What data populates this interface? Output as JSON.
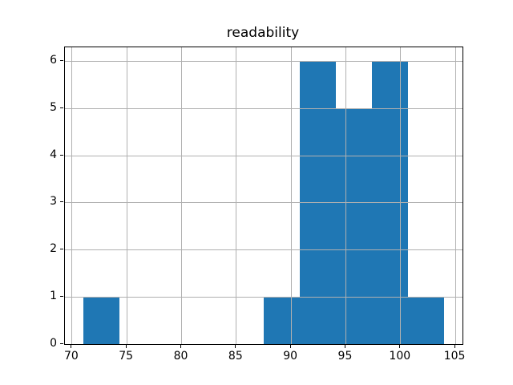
{
  "chart_data": {
    "type": "bar",
    "subtype": "histogram",
    "title": "readability",
    "xlabel": "",
    "ylabel": "",
    "bin_edges": [
      71.0,
      74.3,
      77.6,
      80.9,
      84.2,
      87.5,
      90.8,
      94.1,
      97.4,
      100.7,
      104.0
    ],
    "counts": [
      1,
      0,
      0,
      0,
      0,
      1,
      6,
      5,
      6,
      1
    ],
    "xlim": [
      69.35,
      105.65
    ],
    "ylim": [
      0,
      6.3
    ],
    "x_ticks": [
      70,
      75,
      80,
      85,
      90,
      95,
      100,
      105
    ],
    "y_ticks": [
      0,
      1,
      2,
      3,
      4,
      5,
      6
    ],
    "grid": true,
    "legend_position": "none",
    "bar_color": "#1f77b4",
    "grid_color": "#b0b0b0",
    "spine_color": "#000000",
    "background_color": "#ffffff"
  }
}
